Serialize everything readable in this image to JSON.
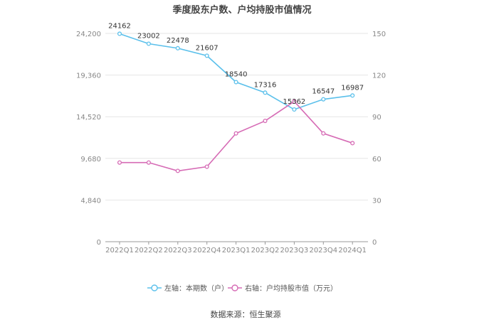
{
  "chart_data": {
    "type": "line",
    "title": "季度股东户数、户均持股市值情况",
    "categories": [
      "2022Q1",
      "2022Q2",
      "2022Q3",
      "2022Q4",
      "2023Q1",
      "2023Q2",
      "2023Q3",
      "2023Q4",
      "2024Q1"
    ],
    "left_axis": {
      "ylim": [
        0,
        24200
      ],
      "ticks": [
        "0",
        "4,840",
        "9,680",
        "14,520",
        "19,360",
        "24,200"
      ],
      "tick_values": [
        0,
        4840,
        9680,
        14520,
        19360,
        24200
      ]
    },
    "right_axis": {
      "ylim": [
        0,
        150
      ],
      "ticks": [
        "0",
        "30",
        "60",
        "90",
        "120",
        "150"
      ],
      "tick_values": [
        0,
        30,
        60,
        90,
        120,
        150
      ]
    },
    "series": [
      {
        "name": "左轴：本期数（户）",
        "axis": "left",
        "color": "#5bc0eb",
        "values": [
          24162,
          23002,
          22478,
          21607,
          18540,
          17316,
          15362,
          16547,
          16987
        ],
        "labels": [
          "24162",
          "23002",
          "22478",
          "21607",
          "18540",
          "17316",
          "15362",
          "16547",
          "16987"
        ]
      },
      {
        "name": "右轴：户均持股市值（万元）",
        "axis": "right",
        "color": "#d66bb5",
        "values": [
          57,
          57,
          51,
          54,
          78,
          87,
          101,
          78,
          71
        ]
      }
    ],
    "grid": true,
    "legend_position": "bottom"
  },
  "source_text": "数据来源：恒生聚源"
}
